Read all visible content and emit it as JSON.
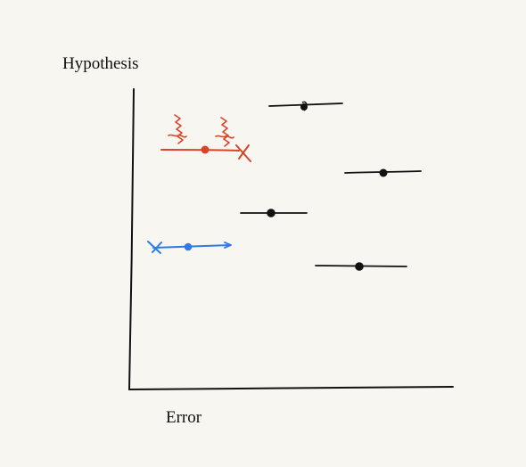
{
  "axes": {
    "y_label": "Hypothesis",
    "x_label": "Error"
  },
  "colors": {
    "ink": "#111111",
    "bad": "#d9432c",
    "good": "#2f7be6",
    "background": "#f8f6f1"
  },
  "intervals": [
    {
      "name": "interval-1",
      "color": "ink"
    },
    {
      "name": "interval-2",
      "color": "bad",
      "marks": [
        "wavy-squiggles",
        "x-end"
      ]
    },
    {
      "name": "interval-3",
      "color": "ink"
    },
    {
      "name": "interval-4",
      "color": "ink"
    },
    {
      "name": "interval-5",
      "color": "good",
      "marks": [
        "x-start",
        "arrow-end"
      ]
    },
    {
      "name": "interval-6",
      "color": "ink"
    }
  ]
}
